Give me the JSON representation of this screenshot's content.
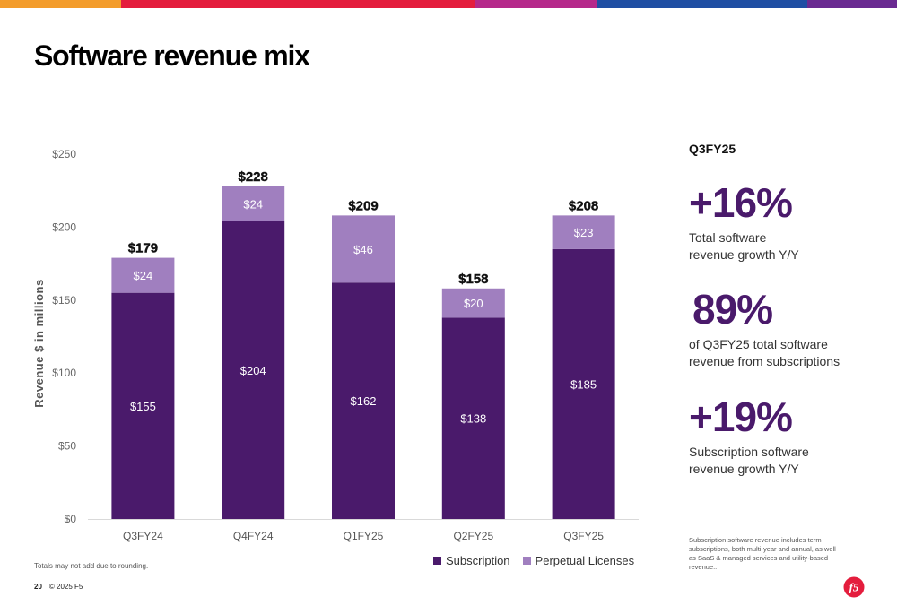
{
  "title": "Software revenue mix",
  "colors": {
    "top_bar": [
      "#f39c2b",
      "#e41d3d",
      "#e41d3d",
      "#b5288a",
      "#1f4ea3",
      "#6a2a91"
    ],
    "subscription": "#4a1a6b",
    "perpetual": "#a07fbf",
    "kpi": "#4a1a6b",
    "logo": "#e41d3d"
  },
  "chart_data": {
    "type": "bar",
    "stacked": true,
    "categories": [
      "Q3FY24",
      "Q4FY24",
      "Q1FY25",
      "Q2FY25",
      "Q3FY25"
    ],
    "series": [
      {
        "name": "Subscription",
        "values": [
          155,
          204,
          162,
          138,
          185
        ],
        "labels": [
          "$155",
          "$204",
          "$162",
          "$138",
          "$185"
        ]
      },
      {
        "name": "Perpetual Licenses",
        "values": [
          24,
          24,
          46,
          20,
          23
        ],
        "labels": [
          "$24",
          "$24",
          "$46",
          "$20",
          "$23"
        ]
      }
    ],
    "totals": [
      179,
      228,
      209,
      158,
      208
    ],
    "total_labels": [
      "$179",
      "$228",
      "$209",
      "$158",
      "$208"
    ],
    "ylabel": "Revenue $ in millions",
    "ylim": [
      0,
      250
    ],
    "yticks": [
      0,
      50,
      100,
      150,
      200,
      250
    ],
    "ytick_labels": [
      "$0",
      "$50",
      "$100",
      "$150",
      "$200",
      "$250"
    ],
    "grid": false,
    "legend_position": "bottom-right"
  },
  "side_panel": {
    "period": "Q3FY25",
    "kpis": [
      {
        "value": "+16%",
        "description": "Total software\nrevenue growth Y/Y"
      },
      {
        "value": "89%",
        "description": "of Q3FY25 total software\nrevenue from subscriptions"
      },
      {
        "value": "+19%",
        "description": "Subscription software\nrevenue growth Y/Y"
      }
    ],
    "footnote": "Subscription software revenue includes term subscriptions, both multi-year and annual, as well as SaaS & managed services and utility-based revenue.."
  },
  "chart_note": "Totals may not add due to rounding.",
  "footer": {
    "page_number": "20",
    "copyright": "© 2025 F5"
  },
  "logo": {
    "text": "f5",
    "icon": "f5-logo-icon"
  }
}
